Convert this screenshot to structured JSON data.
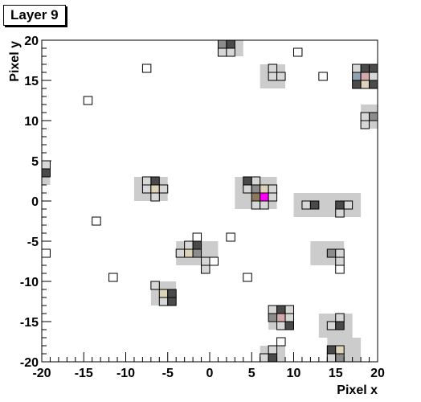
{
  "chart_data": {
    "type": "heatmap",
    "title": "Layer 9",
    "xlabel": "Pixel x",
    "ylabel": "Pixel y",
    "xlim": [
      -20,
      20
    ],
    "ylim": [
      -20,
      20
    ],
    "x_ticks": [
      "-20",
      "-15",
      "-10",
      "-5",
      "0",
      "5",
      "10",
      "15",
      "20"
    ],
    "y_ticks": [
      "20",
      "15",
      "10",
      "5",
      "0",
      "-5",
      "-10",
      "-15",
      "-20"
    ],
    "grid": false,
    "colors": {
      "background_region": "#cccccc",
      "empty": "#ffffff",
      "light": "#d7d7d7",
      "mid": "#8c8c8c",
      "dark": "#4a4a4a",
      "tan": "#ddd3b8",
      "pink": "#d4a9ac",
      "bluegray": "#8fa2b2",
      "brown": "#8d7a5e",
      "magenta": "#ff00ff"
    },
    "regions": [
      {
        "x": [
          1,
          4
        ],
        "y": [
          18,
          20
        ]
      },
      {
        "x": [
          6,
          9
        ],
        "y": [
          14,
          17
        ]
      },
      {
        "x": [
          17,
          20
        ],
        "y": [
          14,
          17
        ]
      },
      {
        "x": [
          18,
          20
        ],
        "y": [
          9,
          12
        ]
      },
      {
        "x": [
          -20,
          -19
        ],
        "y": [
          2,
          5
        ]
      },
      {
        "x": [
          -9,
          -5
        ],
        "y": [
          0,
          3
        ]
      },
      {
        "x": [
          3,
          8
        ],
        "y": [
          -1,
          3
        ]
      },
      {
        "x": [
          10,
          18
        ],
        "y": [
          -2,
          1
        ]
      },
      {
        "x": [
          -4,
          1
        ],
        "y": [
          -8,
          -5
        ]
      },
      {
        "x": [
          12,
          16
        ],
        "y": [
          -8,
          -5
        ]
      },
      {
        "x": [
          -7,
          -4
        ],
        "y": [
          -13,
          -10
        ]
      },
      {
        "x": [
          7,
          10
        ],
        "y": [
          -16,
          -13
        ]
      },
      {
        "x": [
          13,
          17
        ],
        "y": [
          -17,
          -14
        ]
      },
      {
        "x": [
          6,
          9
        ],
        "y": [
          -20,
          -18
        ]
      },
      {
        "x": [
          14,
          18
        ],
        "y": [
          -20,
          -17
        ]
      }
    ],
    "cells": [
      {
        "x": 1,
        "y": 19,
        "c": "mid"
      },
      {
        "x": 2,
        "y": 19,
        "c": "dark"
      },
      {
        "x": 1,
        "y": 18,
        "c": "light"
      },
      {
        "x": 2,
        "y": 18,
        "c": "light"
      },
      {
        "x": 10,
        "y": 18,
        "c": "empty"
      },
      {
        "x": -8,
        "y": 16,
        "c": "empty"
      },
      {
        "x": 7,
        "y": 16,
        "c": "light"
      },
      {
        "x": 7,
        "y": 15,
        "c": "light"
      },
      {
        "x": 8,
        "y": 15,
        "c": "light"
      },
      {
        "x": 13,
        "y": 15,
        "c": "empty"
      },
      {
        "x": 18,
        "y": 16,
        "c": "dark"
      },
      {
        "x": 17,
        "y": 16,
        "c": "light"
      },
      {
        "x": 19,
        "y": 16,
        "c": "dark"
      },
      {
        "x": 17,
        "y": 15,
        "c": "bluegray"
      },
      {
        "x": 18,
        "y": 15,
        "c": "pink"
      },
      {
        "x": 19,
        "y": 15,
        "c": "light"
      },
      {
        "x": 17,
        "y": 14,
        "c": "dark"
      },
      {
        "x": 18,
        "y": 14,
        "c": "tan"
      },
      {
        "x": 19,
        "y": 14,
        "c": "dark"
      },
      {
        "x": -15,
        "y": 12,
        "c": "empty"
      },
      {
        "x": 19,
        "y": 10,
        "c": "mid"
      },
      {
        "x": 18,
        "y": 10,
        "c": "light"
      },
      {
        "x": 18,
        "y": 9,
        "c": "light"
      },
      {
        "x": -20,
        "y": 3,
        "c": "dark"
      },
      {
        "x": -20,
        "y": 4,
        "c": "light"
      },
      {
        "x": -7,
        "y": 2,
        "c": "dark"
      },
      {
        "x": -8,
        "y": 2,
        "c": "light"
      },
      {
        "x": -8,
        "y": 1,
        "c": "light"
      },
      {
        "x": -7,
        "y": 1,
        "c": "tan"
      },
      {
        "x": -6,
        "y": 1,
        "c": "light"
      },
      {
        "x": -7,
        "y": 0,
        "c": "light"
      },
      {
        "x": 4,
        "y": 2,
        "c": "dark"
      },
      {
        "x": 5,
        "y": 2,
        "c": "light"
      },
      {
        "x": 4,
        "y": 1,
        "c": "light"
      },
      {
        "x": 5,
        "y": 1,
        "c": "mid"
      },
      {
        "x": 6,
        "y": 1,
        "c": "tan"
      },
      {
        "x": 7,
        "y": 1,
        "c": "light"
      },
      {
        "x": 5,
        "y": 0,
        "c": "brown"
      },
      {
        "x": 6,
        "y": 0,
        "c": "magenta"
      },
      {
        "x": 7,
        "y": 0,
        "c": "light"
      },
      {
        "x": 5,
        "y": -1,
        "c": "light"
      },
      {
        "x": 6,
        "y": -1,
        "c": "light"
      },
      {
        "x": 11,
        "y": -1,
        "c": "light"
      },
      {
        "x": 12,
        "y": -1,
        "c": "dark"
      },
      {
        "x": 15,
        "y": -1,
        "c": "dark"
      },
      {
        "x": 16,
        "y": -1,
        "c": "light"
      },
      {
        "x": 15,
        "y": -2,
        "c": "light"
      },
      {
        "x": -14,
        "y": -3,
        "c": "empty"
      },
      {
        "x": 2,
        "y": -5,
        "c": "empty"
      },
      {
        "x": -2,
        "y": -5,
        "c": "empty"
      },
      {
        "x": -3,
        "y": -6,
        "c": "light"
      },
      {
        "x": -2,
        "y": -6,
        "c": "dark"
      },
      {
        "x": -4,
        "y": -7,
        "c": "light"
      },
      {
        "x": -3,
        "y": -7,
        "c": "tan"
      },
      {
        "x": -2,
        "y": -7,
        "c": "mid"
      },
      {
        "x": -1,
        "y": -8,
        "c": "light"
      },
      {
        "x": 0,
        "y": -8,
        "c": "empty"
      },
      {
        "x": -1,
        "y": -9,
        "c": "light"
      },
      {
        "x": -20,
        "y": -7,
        "c": "empty"
      },
      {
        "x": 14,
        "y": -7,
        "c": "mid"
      },
      {
        "x": 15,
        "y": -7,
        "c": "light"
      },
      {
        "x": 15,
        "y": -8,
        "c": "light"
      },
      {
        "x": 15,
        "y": -9,
        "c": "empty"
      },
      {
        "x": -12,
        "y": -10,
        "c": "empty"
      },
      {
        "x": 4,
        "y": -10,
        "c": "empty"
      },
      {
        "x": -7,
        "y": -11,
        "c": "light"
      },
      {
        "x": -6,
        "y": -12,
        "c": "tan"
      },
      {
        "x": -5,
        "y": -12,
        "c": "dark"
      },
      {
        "x": -6,
        "y": -13,
        "c": "light"
      },
      {
        "x": -5,
        "y": -13,
        "c": "dark"
      },
      {
        "x": 7,
        "y": -14,
        "c": "light"
      },
      {
        "x": 8,
        "y": -14,
        "c": "dark"
      },
      {
        "x": 9,
        "y": -14,
        "c": "light"
      },
      {
        "x": 7,
        "y": -15,
        "c": "mid"
      },
      {
        "x": 8,
        "y": -15,
        "c": "pink"
      },
      {
        "x": 9,
        "y": -15,
        "c": "light"
      },
      {
        "x": 8,
        "y": -16,
        "c": "light"
      },
      {
        "x": 9,
        "y": -16,
        "c": "dark"
      },
      {
        "x": 15,
        "y": -15,
        "c": "light"
      },
      {
        "x": 14,
        "y": -16,
        "c": "light"
      },
      {
        "x": 15,
        "y": -16,
        "c": "dark"
      },
      {
        "x": 8,
        "y": -18,
        "c": "empty"
      },
      {
        "x": 7,
        "y": -19,
        "c": "light"
      },
      {
        "x": 6,
        "y": -20,
        "c": "light"
      },
      {
        "x": 7,
        "y": -20,
        "c": "dark"
      },
      {
        "x": 14,
        "y": -19,
        "c": "dark"
      },
      {
        "x": 15,
        "y": -19,
        "c": "tan"
      },
      {
        "x": 14,
        "y": -20,
        "c": "light"
      },
      {
        "x": 15,
        "y": -20,
        "c": "mid"
      }
    ]
  }
}
